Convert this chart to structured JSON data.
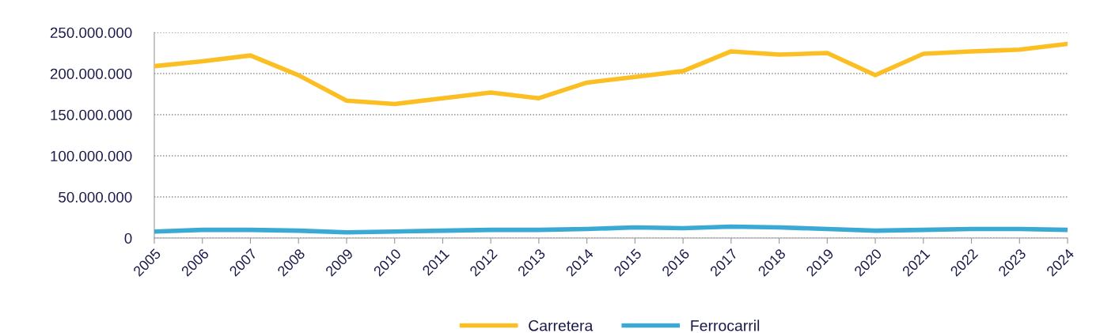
{
  "chart_data": {
    "type": "line",
    "x": [
      2005,
      2006,
      2007,
      2008,
      2009,
      2010,
      2011,
      2012,
      2013,
      2014,
      2015,
      2016,
      2017,
      2018,
      2019,
      2020,
      2021,
      2022,
      2023,
      2024
    ],
    "series": [
      {
        "name": "Carretera",
        "color": "#fbbf24",
        "values": [
          209000000,
          215000000,
          222000000,
          198000000,
          167000000,
          163000000,
          170000000,
          177000000,
          170000000,
          189000000,
          196000000,
          203000000,
          227000000,
          223000000,
          225000000,
          198000000,
          224000000,
          227000000,
          229000000,
          236000000
        ]
      },
      {
        "name": "Ferrocarril",
        "color": "#3aa9d4",
        "values": [
          8000000,
          10000000,
          10000000,
          9000000,
          7000000,
          8000000,
          9000000,
          10000000,
          10000000,
          11000000,
          13000000,
          12000000,
          14000000,
          13000000,
          11000000,
          9000000,
          10000000,
          11000000,
          11000000,
          10000000
        ]
      }
    ],
    "xlim": [
      2005,
      2024
    ],
    "xticks": [
      2005,
      2006,
      2007,
      2008,
      2009,
      2010,
      2011,
      2012,
      2013,
      2014,
      2015,
      2016,
      2017,
      2018,
      2019,
      2020,
      2021,
      2022,
      2023,
      2024
    ],
    "ylim": [
      0,
      250000000
    ],
    "yticks": [
      {
        "value": 0,
        "label": "0"
      },
      {
        "value": 50000000,
        "label": "50.000.000"
      },
      {
        "value": 100000000,
        "label": "100.000.000"
      },
      {
        "value": 150000000,
        "label": "150.000.000"
      },
      {
        "value": 200000000,
        "label": "200.000.000"
      },
      {
        "value": 250000000,
        "label": "250.000.000"
      }
    ],
    "grid": "y",
    "legend": "bottom",
    "marker": "none",
    "line_style": "solid"
  }
}
